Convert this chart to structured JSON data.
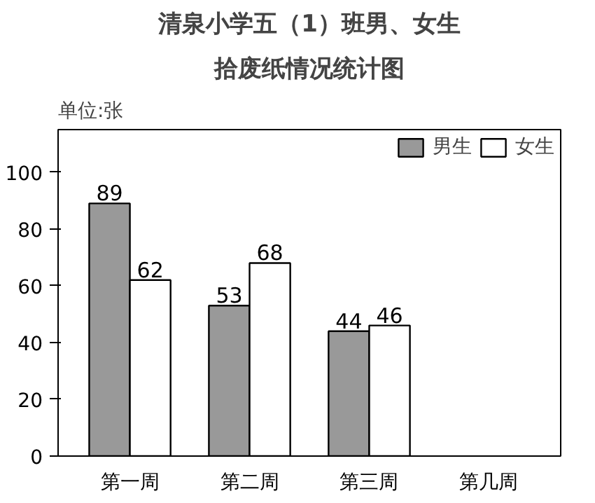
{
  "chart_data": {
    "type": "bar",
    "title": "清泉小学五（1）班男、女生",
    "subtitle": "拾废纸情况统计图",
    "ylabel": "单位:张",
    "categories": [
      "第一周",
      "第二周",
      "第三周",
      "第几周"
    ],
    "series": [
      {
        "name": "男生",
        "color": "#999999",
        "values": [
          89,
          53,
          44,
          null
        ]
      },
      {
        "name": "女生",
        "color": "#ffffff",
        "values": [
          62,
          68,
          46,
          null
        ]
      }
    ],
    "ylim": [
      0,
      115
    ],
    "yticks": [
      0,
      20,
      40,
      60,
      80,
      100
    ],
    "grid": false,
    "legend": "top right",
    "data_labels": true
  }
}
